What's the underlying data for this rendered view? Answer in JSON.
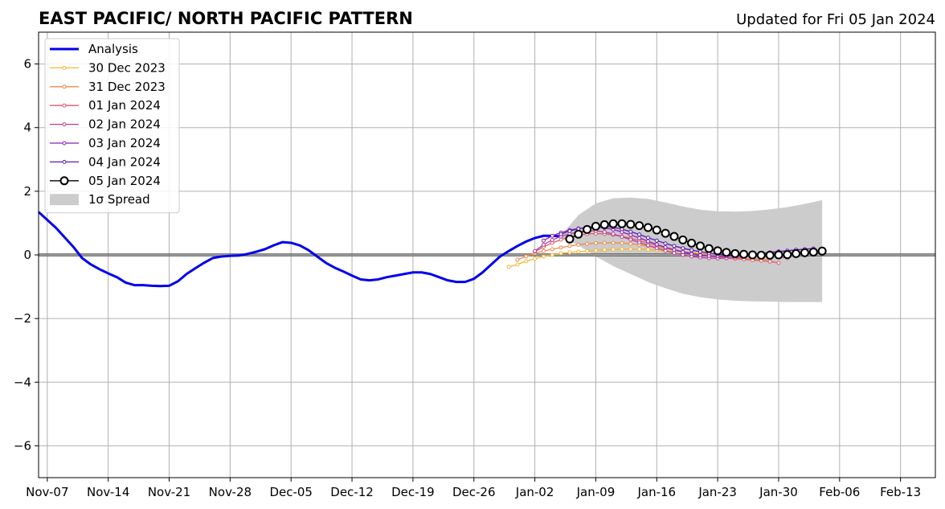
{
  "chart_data": {
    "type": "line",
    "title": "EAST PACIFIC/ NORTH PACIFIC PATTERN",
    "subtitle": "Updated for Fri 05 Jan 2024",
    "xlabel": "",
    "ylabel": "",
    "x_unit": "date",
    "xlim": [
      "2023-11-06",
      "2024-02-17"
    ],
    "ylim": [
      -7,
      7
    ],
    "xticks": [
      {
        "date": "2023-11-07",
        "label": "Nov-07"
      },
      {
        "date": "2023-11-14",
        "label": "Nov-14"
      },
      {
        "date": "2023-11-21",
        "label": "Nov-21"
      },
      {
        "date": "2023-11-28",
        "label": "Nov-28"
      },
      {
        "date": "2023-12-05",
        "label": "Dec-05"
      },
      {
        "date": "2023-12-12",
        "label": "Dec-12"
      },
      {
        "date": "2023-12-19",
        "label": "Dec-19"
      },
      {
        "date": "2023-12-26",
        "label": "Dec-26"
      },
      {
        "date": "2024-01-02",
        "label": "Jan-02"
      },
      {
        "date": "2024-01-09",
        "label": "Jan-09"
      },
      {
        "date": "2024-01-16",
        "label": "Jan-16"
      },
      {
        "date": "2024-01-23",
        "label": "Jan-23"
      },
      {
        "date": "2024-01-30",
        "label": "Jan-30"
      },
      {
        "date": "2024-02-06",
        "label": "Feb-06"
      },
      {
        "date": "2024-02-13",
        "label": "Feb-13"
      }
    ],
    "yticks": [
      {
        "value": -6,
        "label": "−6"
      },
      {
        "value": -4,
        "label": "−4"
      },
      {
        "value": -2,
        "label": "−2"
      },
      {
        "value": 0,
        "label": "0"
      },
      {
        "value": 2,
        "label": "2"
      },
      {
        "value": 4,
        "label": "4"
      },
      {
        "value": 6,
        "label": "6"
      }
    ],
    "grid": true,
    "zero_line": true,
    "legend_position": "top-left",
    "series": [
      {
        "name": "Analysis",
        "style": "thick-line",
        "color": "#0000ee",
        "x": [
          "2023-11-06",
          "2023-11-07",
          "2023-11-08",
          "2023-11-09",
          "2023-11-10",
          "2023-11-11",
          "2023-11-12",
          "2023-11-13",
          "2023-11-14",
          "2023-11-15",
          "2023-11-16",
          "2023-11-17",
          "2023-11-18",
          "2023-11-19",
          "2023-11-20",
          "2023-11-21",
          "2023-11-22",
          "2023-11-23",
          "2023-11-24",
          "2023-11-25",
          "2023-11-26",
          "2023-11-27",
          "2023-11-28",
          "2023-11-29",
          "2023-11-30",
          "2023-12-01",
          "2023-12-02",
          "2023-12-03",
          "2023-12-04",
          "2023-12-05",
          "2023-12-06",
          "2023-12-07",
          "2023-12-08",
          "2023-12-09",
          "2023-12-10",
          "2023-12-11",
          "2023-12-12",
          "2023-12-13",
          "2023-12-14",
          "2023-12-15",
          "2023-12-16",
          "2023-12-17",
          "2023-12-18",
          "2023-12-19",
          "2023-12-20",
          "2023-12-21",
          "2023-12-22",
          "2023-12-23",
          "2023-12-24",
          "2023-12-25",
          "2023-12-26",
          "2023-12-27",
          "2023-12-28",
          "2023-12-29",
          "2023-12-30",
          "2023-12-31",
          "2024-01-01",
          "2024-01-02",
          "2024-01-03",
          "2024-01-04",
          "2024-01-05"
        ],
        "values": [
          1.35,
          1.1,
          0.85,
          0.55,
          0.25,
          -0.1,
          -0.3,
          -0.45,
          -0.58,
          -0.7,
          -0.87,
          -0.95,
          -0.95,
          -0.97,
          -0.98,
          -0.97,
          -0.83,
          -0.6,
          -0.42,
          -0.25,
          -0.1,
          -0.05,
          -0.03,
          -0.02,
          0.03,
          0.1,
          0.18,
          0.3,
          0.4,
          0.38,
          0.3,
          0.15,
          -0.05,
          -0.25,
          -0.4,
          -0.52,
          -0.65,
          -0.77,
          -0.8,
          -0.77,
          -0.7,
          -0.65,
          -0.6,
          -0.55,
          -0.55,
          -0.6,
          -0.7,
          -0.8,
          -0.85,
          -0.85,
          -0.75,
          -0.55,
          -0.3,
          -0.05,
          0.12,
          0.28,
          0.42,
          0.53,
          0.6,
          0.6,
          0.58
        ]
      },
      {
        "name": "30 Dec 2023",
        "style": "thin-line-dots",
        "color": "#f5b731",
        "x": [
          "2023-12-30",
          "2023-12-31",
          "2024-01-01",
          "2024-01-02",
          "2024-01-03",
          "2024-01-04",
          "2024-01-05",
          "2024-01-06",
          "2024-01-07",
          "2024-01-08",
          "2024-01-09",
          "2024-01-10",
          "2024-01-11",
          "2024-01-12",
          "2024-01-13",
          "2024-01-14",
          "2024-01-15",
          "2024-01-16",
          "2024-01-17",
          "2024-01-18",
          "2024-01-19",
          "2024-01-20",
          "2024-01-21",
          "2024-01-22",
          "2024-01-23",
          "2024-01-24",
          "2024-01-25",
          "2024-01-26",
          "2024-01-27",
          "2024-01-28"
        ],
        "values": [
          -0.38,
          -0.3,
          -0.2,
          -0.12,
          -0.05,
          0.0,
          0.05,
          0.08,
          0.1,
          0.12,
          0.14,
          0.16,
          0.17,
          0.18,
          0.18,
          0.18,
          0.17,
          0.15,
          0.13,
          0.11,
          0.09,
          0.07,
          0.05,
          0.03,
          0.02,
          0.0,
          -0.02,
          -0.03,
          -0.04,
          -0.05
        ]
      },
      {
        "name": "31 Dec 2023",
        "style": "thin-line-dots",
        "color": "#f08848",
        "x": [
          "2023-12-31",
          "2024-01-01",
          "2024-01-02",
          "2024-01-03",
          "2024-01-04",
          "2024-01-05",
          "2024-01-06",
          "2024-01-07",
          "2024-01-08",
          "2024-01-09",
          "2024-01-10",
          "2024-01-11",
          "2024-01-12",
          "2024-01-13",
          "2024-01-14",
          "2024-01-15",
          "2024-01-16",
          "2024-01-17",
          "2024-01-18",
          "2024-01-19",
          "2024-01-20",
          "2024-01-21",
          "2024-01-22",
          "2024-01-23",
          "2024-01-24",
          "2024-01-25",
          "2024-01-26",
          "2024-01-27",
          "2024-01-28",
          "2024-01-29"
        ],
        "values": [
          -0.15,
          -0.05,
          0.05,
          0.12,
          0.18,
          0.23,
          0.28,
          0.32,
          0.35,
          0.37,
          0.38,
          0.38,
          0.37,
          0.35,
          0.32,
          0.28,
          0.24,
          0.2,
          0.15,
          0.1,
          0.06,
          0.02,
          -0.02,
          -0.05,
          -0.08,
          -0.1,
          -0.12,
          -0.13,
          -0.14,
          -0.15
        ]
      },
      {
        "name": "01 Jan 2024",
        "style": "thin-line-dots",
        "color": "#e05a6a",
        "x": [
          "2024-01-02",
          "2024-01-03",
          "2024-01-04",
          "2024-01-05",
          "2024-01-06",
          "2024-01-07",
          "2024-01-08",
          "2024-01-09",
          "2024-01-10",
          "2024-01-11",
          "2024-01-12",
          "2024-01-13",
          "2024-01-14",
          "2024-01-15",
          "2024-01-16",
          "2024-01-17",
          "2024-01-18",
          "2024-01-19",
          "2024-01-20",
          "2024-01-21",
          "2024-01-22",
          "2024-01-23",
          "2024-01-24",
          "2024-01-25",
          "2024-01-26",
          "2024-01-27",
          "2024-01-28",
          "2024-01-29",
          "2024-01-30"
        ],
        "values": [
          0.1,
          0.25,
          0.38,
          0.48,
          0.56,
          0.62,
          0.66,
          0.67,
          0.66,
          0.63,
          0.58,
          0.52,
          0.45,
          0.37,
          0.3,
          0.23,
          0.16,
          0.1,
          0.05,
          0.0,
          -0.04,
          -0.07,
          -0.1,
          -0.12,
          -0.14,
          -0.16,
          -0.18,
          -0.21,
          -0.25
        ]
      },
      {
        "name": "02 Jan 2024",
        "style": "thin-line-dots",
        "color": "#b53f96",
        "x": [
          "2024-01-02",
          "2024-01-03",
          "2024-01-04",
          "2024-01-05",
          "2024-01-06",
          "2024-01-07",
          "2024-01-08",
          "2024-01-09",
          "2024-01-10",
          "2024-01-11",
          "2024-01-12",
          "2024-01-13",
          "2024-01-14",
          "2024-01-15",
          "2024-01-16",
          "2024-01-17",
          "2024-01-18",
          "2024-01-19",
          "2024-01-20",
          "2024-01-21",
          "2024-01-22",
          "2024-01-23",
          "2024-01-24",
          "2024-01-25",
          "2024-01-26",
          "2024-01-27",
          "2024-01-28",
          "2024-01-29",
          "2024-01-30",
          "2024-01-31"
        ],
        "values": [
          0.12,
          0.32,
          0.47,
          0.58,
          0.66,
          0.72,
          0.76,
          0.76,
          0.72,
          0.66,
          0.57,
          0.48,
          0.39,
          0.3,
          0.21,
          0.13,
          0.06,
          0.0,
          -0.05,
          -0.08,
          -0.1,
          -0.11,
          -0.1,
          -0.08,
          -0.06,
          -0.04,
          -0.02,
          -0.01,
          -0.05,
          -0.1
        ]
      },
      {
        "name": "03 Jan 2024",
        "style": "thin-line-dots",
        "color": "#8a1fb8",
        "x": [
          "2024-01-03",
          "2024-01-04",
          "2024-01-05",
          "2024-01-06",
          "2024-01-07",
          "2024-01-08",
          "2024-01-09",
          "2024-01-10",
          "2024-01-11",
          "2024-01-12",
          "2024-01-13",
          "2024-01-14",
          "2024-01-15",
          "2024-01-16",
          "2024-01-17",
          "2024-01-18",
          "2024-01-19",
          "2024-01-20",
          "2024-01-21",
          "2024-01-22",
          "2024-01-23",
          "2024-01-24",
          "2024-01-25",
          "2024-01-26",
          "2024-01-27",
          "2024-01-28",
          "2024-01-29",
          "2024-01-30",
          "2024-01-31",
          "2024-02-01"
        ],
        "values": [
          0.45,
          0.6,
          0.7,
          0.78,
          0.83,
          0.86,
          0.87,
          0.85,
          0.8,
          0.72,
          0.63,
          0.53,
          0.43,
          0.33,
          0.24,
          0.16,
          0.09,
          0.03,
          -0.01,
          -0.03,
          -0.04,
          -0.04,
          -0.03,
          -0.01,
          0.02,
          0.05,
          0.08,
          0.11,
          0.13,
          0.15
        ]
      },
      {
        "name": "04 Jan 2024",
        "style": "thin-line-dots",
        "color": "#5a1ab0",
        "x": [
          "2024-01-05",
          "2024-01-06",
          "2024-01-07",
          "2024-01-08",
          "2024-01-09",
          "2024-01-10",
          "2024-01-11",
          "2024-01-12",
          "2024-01-13",
          "2024-01-14",
          "2024-01-15",
          "2024-01-16",
          "2024-01-17",
          "2024-01-18",
          "2024-01-19",
          "2024-01-20",
          "2024-01-21",
          "2024-01-22",
          "2024-01-23",
          "2024-01-24",
          "2024-01-25",
          "2024-01-26",
          "2024-01-27",
          "2024-01-28",
          "2024-01-29",
          "2024-01-30",
          "2024-01-31",
          "2024-02-01",
          "2024-02-02",
          "2024-02-03"
        ],
        "values": [
          0.65,
          0.75,
          0.82,
          0.87,
          0.9,
          0.9,
          0.87,
          0.81,
          0.73,
          0.64,
          0.54,
          0.45,
          0.36,
          0.28,
          0.21,
          0.15,
          0.1,
          0.05,
          0.02,
          0.0,
          -0.01,
          -0.01,
          0.0,
          0.03,
          0.06,
          0.1,
          0.13,
          0.16,
          0.18,
          0.2
        ]
      },
      {
        "name": "05 Jan 2024",
        "style": "open-circles",
        "color": "#000000",
        "x": [
          "2024-01-06",
          "2024-01-07",
          "2024-01-08",
          "2024-01-09",
          "2024-01-10",
          "2024-01-11",
          "2024-01-12",
          "2024-01-13",
          "2024-01-14",
          "2024-01-15",
          "2024-01-16",
          "2024-01-17",
          "2024-01-18",
          "2024-01-19",
          "2024-01-20",
          "2024-01-21",
          "2024-01-22",
          "2024-01-23",
          "2024-01-24",
          "2024-01-25",
          "2024-01-26",
          "2024-01-27",
          "2024-01-28",
          "2024-01-29",
          "2024-01-30",
          "2024-01-31",
          "2024-02-01",
          "2024-02-02",
          "2024-02-03",
          "2024-02-04"
        ],
        "values": [
          0.5,
          0.65,
          0.8,
          0.9,
          0.95,
          0.98,
          0.98,
          0.96,
          0.92,
          0.86,
          0.78,
          0.68,
          0.58,
          0.47,
          0.37,
          0.28,
          0.2,
          0.13,
          0.08,
          0.04,
          0.02,
          0.0,
          -0.01,
          -0.01,
          0.0,
          0.01,
          0.04,
          0.07,
          0.09,
          0.12
        ]
      }
    ],
    "spread": {
      "name": "1σ Spread",
      "color": "#cccccc",
      "x": [
        "2024-01-05",
        "2024-01-07",
        "2024-01-09",
        "2024-01-11",
        "2024-01-13",
        "2024-01-15",
        "2024-01-17",
        "2024-01-19",
        "2024-01-21",
        "2024-01-23",
        "2024-01-25",
        "2024-01-27",
        "2024-01-29",
        "2024-01-31",
        "2024-02-02",
        "2024-02-04"
      ],
      "upper": [
        0.6,
        1.25,
        1.62,
        1.78,
        1.8,
        1.76,
        1.65,
        1.52,
        1.42,
        1.37,
        1.36,
        1.38,
        1.43,
        1.5,
        1.6,
        1.72
      ],
      "lower": [
        0.55,
        0.3,
        -0.05,
        -0.35,
        -0.6,
        -0.85,
        -1.05,
        -1.22,
        -1.33,
        -1.4,
        -1.44,
        -1.46,
        -1.47,
        -1.48,
        -1.48,
        -1.48
      ]
    }
  }
}
